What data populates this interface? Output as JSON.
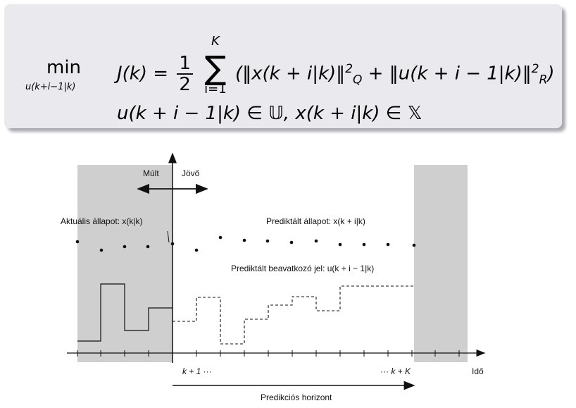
{
  "formula": {
    "min_operator": "min",
    "min_subscript": "u(k+i−1|k)",
    "objective_lhs": "J(k) =",
    "frac_num": "1",
    "frac_den": "2",
    "sum_upper": "K",
    "sum_lower": "i=1",
    "objective_rhs_a": "(‖x(k + i|k)‖",
    "rhs_a_sup": "2",
    "rhs_a_sub": "Q",
    "objective_rhs_b": " + ‖u(k + i − 1|k)‖",
    "rhs_b_sup": "2",
    "rhs_b_sub": "R",
    "objective_close": ")",
    "constraint": "u(k + i − 1|k) ∈ 𝕌,   x(k + i|k) ∈ 𝕏"
  },
  "diagram": {
    "label_past": "Múlt",
    "label_future": "Jövő",
    "label_current_state": "Aktuális állapot: x(k|k)",
    "label_predicted_state": "Prediktált állapot: x(k + i|k)",
    "label_predicted_input": "Prediktált beavatkozó jel: u(k + i − 1|k)",
    "tick_k1": "k + 1  ···",
    "tick_kK": "···  k + K",
    "axis_time": "Idő",
    "horizon_label": "Predikciós horizont",
    "colors": {
      "shade": "#cfcfcf",
      "mathbox": "#e9e9ee",
      "ink": "#111111"
    }
  }
}
